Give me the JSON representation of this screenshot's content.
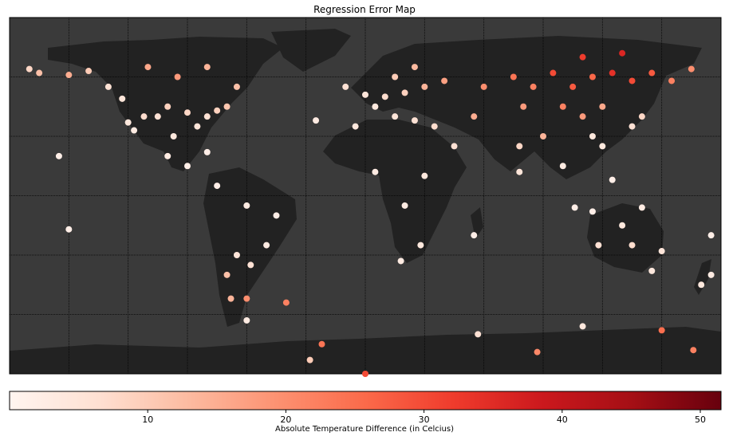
{
  "chart_data": {
    "type": "scatter",
    "title": "Regression Error Map",
    "map": {
      "projection": "equirectangular",
      "lon_range": [
        -180,
        180
      ],
      "lat_range": [
        -90,
        90
      ],
      "graticule_lon": [
        -150,
        -120,
        -90,
        -60,
        -30,
        0,
        30,
        60,
        90,
        120,
        150
      ],
      "graticule_lat": [
        -60,
        -30,
        0,
        30,
        60
      ],
      "ocean_color": "#3a3a3a",
      "land_color": "#222222"
    },
    "colorbar": {
      "label": "Absolute Temperature Difference (in Celcius)",
      "ticks": [
        10,
        20,
        30,
        40,
        50
      ],
      "range": [
        0,
        51.5
      ],
      "colormap": "Reds",
      "stops": [
        "#fff5f0",
        "#fee0d2",
        "#fcbba1",
        "#fc9272",
        "#fb6a4a",
        "#ef3b2c",
        "#cb181d",
        "#a50f15",
        "#67000d"
      ]
    },
    "series": [
      {
        "points": [
          {
            "lon": -170,
            "lat": 64,
            "error": 8
          },
          {
            "lon": -165,
            "lat": 62,
            "error": 12
          },
          {
            "lon": -150,
            "lat": 61,
            "error": 15
          },
          {
            "lon": -140,
            "lat": 63,
            "error": 10
          },
          {
            "lon": -130,
            "lat": 55,
            "error": 6
          },
          {
            "lon": -123,
            "lat": 49,
            "error": 5
          },
          {
            "lon": -120,
            "lat": 37,
            "error": 4
          },
          {
            "lon": -117,
            "lat": 33,
            "error": 3
          },
          {
            "lon": -112,
            "lat": 40,
            "error": 7
          },
          {
            "lon": -105,
            "lat": 40,
            "error": 6
          },
          {
            "lon": -100,
            "lat": 45,
            "error": 9
          },
          {
            "lon": -97,
            "lat": 30,
            "error": 4
          },
          {
            "lon": -90,
            "lat": 42,
            "error": 8
          },
          {
            "lon": -85,
            "lat": 35,
            "error": 5
          },
          {
            "lon": -80,
            "lat": 40,
            "error": 6
          },
          {
            "lon": -75,
            "lat": 43,
            "error": 9
          },
          {
            "lon": -70,
            "lat": 45,
            "error": 11
          },
          {
            "lon": -95,
            "lat": 60,
            "error": 18
          },
          {
            "lon": -110,
            "lat": 65,
            "error": 16
          },
          {
            "lon": -80,
            "lat": 65,
            "error": 14
          },
          {
            "lon": -65,
            "lat": 55,
            "error": 12
          },
          {
            "lon": -100,
            "lat": 20,
            "error": 3
          },
          {
            "lon": -90,
            "lat": 15,
            "error": 2
          },
          {
            "lon": -80,
            "lat": 22,
            "error": 2
          },
          {
            "lon": -155,
            "lat": 20,
            "error": 2
          },
          {
            "lon": -75,
            "lat": 5,
            "error": 2
          },
          {
            "lon": -60,
            "lat": -5,
            "error": 3
          },
          {
            "lon": -45,
            "lat": -10,
            "error": 2
          },
          {
            "lon": -50,
            "lat": -25,
            "error": 3
          },
          {
            "lon": -65,
            "lat": -30,
            "error": 5
          },
          {
            "lon": -70,
            "lat": -40,
            "error": 12
          },
          {
            "lon": -68,
            "lat": -52,
            "error": 14
          },
          {
            "lon": -58,
            "lat": -35,
            "error": 6
          },
          {
            "lon": -60,
            "lat": -52,
            "error": 20
          },
          {
            "lon": -40,
            "lat": -54,
            "error": 22
          },
          {
            "lon": -10,
            "lat": 55,
            "error": 6
          },
          {
            "lon": 0,
            "lat": 51,
            "error": 5
          },
          {
            "lon": 10,
            "lat": 50,
            "error": 7
          },
          {
            "lon": 20,
            "lat": 52,
            "error": 9
          },
          {
            "lon": 30,
            "lat": 55,
            "error": 14
          },
          {
            "lon": 40,
            "lat": 58,
            "error": 17
          },
          {
            "lon": 15,
            "lat": 60,
            "error": 10
          },
          {
            "lon": 25,
            "lat": 65,
            "error": 13
          },
          {
            "lon": 5,
            "lat": 45,
            "error": 4
          },
          {
            "lon": 15,
            "lat": 40,
            "error": 5
          },
          {
            "lon": 25,
            "lat": 38,
            "error": 6
          },
          {
            "lon": 35,
            "lat": 35,
            "error": 7
          },
          {
            "lon": -5,
            "lat": 35,
            "error": 4
          },
          {
            "lon": 5,
            "lat": 12,
            "error": 3
          },
          {
            "lon": 30,
            "lat": 10,
            "error": 4
          },
          {
            "lon": 20,
            "lat": -5,
            "error": 3
          },
          {
            "lon": 28,
            "lat": -25,
            "error": 4
          },
          {
            "lon": 18,
            "lat": -33,
            "error": 3
          },
          {
            "lon": 45,
            "lat": 25,
            "error": 6
          },
          {
            "lon": 55,
            "lat": 40,
            "error": 15
          },
          {
            "lon": 60,
            "lat": 55,
            "error": 20
          },
          {
            "lon": 75,
            "lat": 60,
            "error": 24
          },
          {
            "lon": 85,
            "lat": 55,
            "error": 22
          },
          {
            "lon": 95,
            "lat": 62,
            "error": 30
          },
          {
            "lon": 105,
            "lat": 55,
            "error": 28
          },
          {
            "lon": 115,
            "lat": 60,
            "error": 26
          },
          {
            "lon": 125,
            "lat": 62,
            "error": 34
          },
          {
            "lon": 135,
            "lat": 58,
            "error": 30
          },
          {
            "lon": 145,
            "lat": 62,
            "error": 28
          },
          {
            "lon": 155,
            "lat": 58,
            "error": 22
          },
          {
            "lon": 165,
            "lat": 64,
            "error": 20
          },
          {
            "lon": 110,
            "lat": 70,
            "error": 32
          },
          {
            "lon": 130,
            "lat": 72,
            "error": 36
          },
          {
            "lon": 100,
            "lat": 45,
            "error": 22
          },
          {
            "lon": 110,
            "lat": 40,
            "error": 18
          },
          {
            "lon": 120,
            "lat": 45,
            "error": 16
          },
          {
            "lon": 80,
            "lat": 45,
            "error": 18
          },
          {
            "lon": 90,
            "lat": 30,
            "error": 14
          },
          {
            "lon": 78,
            "lat": 25,
            "error": 8
          },
          {
            "lon": 78,
            "lat": 12,
            "error": 5
          },
          {
            "lon": 100,
            "lat": 15,
            "error": 3
          },
          {
            "lon": 115,
            "lat": 30,
            "error": 4
          },
          {
            "lon": 120,
            "lat": 25,
            "error": 4
          },
          {
            "lon": 135,
            "lat": 35,
            "error": 6
          },
          {
            "lon": 140,
            "lat": 40,
            "error": 8
          },
          {
            "lon": 106,
            "lat": -6,
            "error": 2
          },
          {
            "lon": 115,
            "lat": -8,
            "error": 2
          },
          {
            "lon": 125,
            "lat": 8,
            "error": 2
          },
          {
            "lon": 140,
            "lat": -6,
            "error": 3
          },
          {
            "lon": 130,
            "lat": -15,
            "error": 4
          },
          {
            "lon": 118,
            "lat": -25,
            "error": 6
          },
          {
            "lon": 135,
            "lat": -25,
            "error": 7
          },
          {
            "lon": 150,
            "lat": -28,
            "error": 5
          },
          {
            "lon": 145,
            "lat": -38,
            "error": 4
          },
          {
            "lon": 175,
            "lat": -40,
            "error": 3
          },
          {
            "lon": 170,
            "lat": -45,
            "error": 4
          },
          {
            "lon": 175,
            "lat": -20,
            "error": 2
          },
          {
            "lon": -150,
            "lat": -17,
            "error": 2
          },
          {
            "lon": -25,
            "lat": 38,
            "error": 3
          },
          {
            "lon": 55,
            "lat": -20,
            "error": 2
          },
          {
            "lon": 57,
            "lat": -70,
            "error": 6
          },
          {
            "lon": 110,
            "lat": -66,
            "error": 4
          },
          {
            "lon": 150,
            "lat": -68,
            "error": 25
          },
          {
            "lon": 166,
            "lat": -78,
            "error": 22
          },
          {
            "lon": 87,
            "lat": -79,
            "error": 21
          },
          {
            "lon": -60,
            "lat": -63,
            "error": 3
          },
          {
            "lon": -28,
            "lat": -83,
            "error": 10
          },
          {
            "lon": -22,
            "lat": -75,
            "error": 24
          },
          {
            "lon": 0,
            "lat": -90,
            "error": 30
          }
        ]
      }
    ]
  }
}
